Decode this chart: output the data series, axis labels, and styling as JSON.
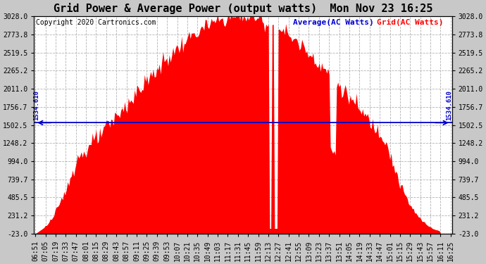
{
  "title": "Grid Power & Average Power (output watts)  Mon Nov 23 16:25",
  "copyright": "Copyright 2020 Cartronics.com",
  "legend_avg": "Average(AC Watts)",
  "legend_grid": "Grid(AC Watts)",
  "average_value": 1534.61,
  "avg_label": "1534.610",
  "ylim": [
    -23.0,
    3028.0
  ],
  "yticks": [
    -23.0,
    231.2,
    485.5,
    739.7,
    994.0,
    1248.2,
    1502.5,
    1756.7,
    2011.0,
    2265.2,
    2519.5,
    2773.8,
    3028.0
  ],
  "ytick_labels": [
    "-23.0",
    "231.2",
    "485.5",
    "739.7",
    "994.0",
    "1248.2",
    "1502.5",
    "1756.7",
    "2011.0",
    "2265.2",
    "2519.5",
    "2773.8",
    "3028.0"
  ],
  "bar_color": "#ff0000",
  "avg_line_color": "#0000cd",
  "grid_color": "#aaaaaa",
  "background_color": "#c8c8c8",
  "plot_bg_color": "#ffffff",
  "title_fontsize": 11,
  "copyright_fontsize": 7,
  "legend_fontsize": 8,
  "tick_fontsize": 7,
  "xtick_labels": [
    "06:51",
    "07:05",
    "07:19",
    "07:33",
    "07:47",
    "08:01",
    "08:15",
    "08:29",
    "08:43",
    "08:57",
    "09:11",
    "09:25",
    "09:39",
    "09:53",
    "10:07",
    "10:21",
    "10:35",
    "10:49",
    "11:03",
    "11:17",
    "11:31",
    "11:45",
    "11:59",
    "12:13",
    "12:27",
    "12:41",
    "12:55",
    "13:09",
    "13:23",
    "13:37",
    "13:51",
    "14:05",
    "14:19",
    "14:33",
    "14:47",
    "15:01",
    "15:15",
    "15:29",
    "15:43",
    "15:57",
    "16:11",
    "16:25"
  ]
}
